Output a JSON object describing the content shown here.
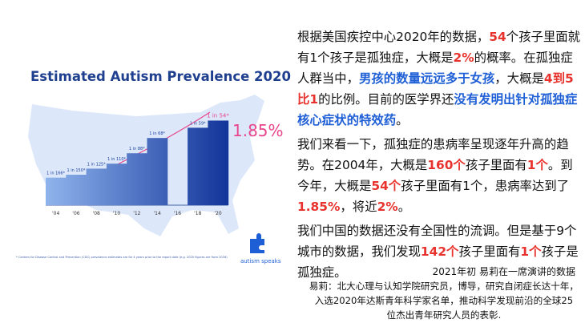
{
  "chart_data": {
    "type": "step",
    "title": "Estimated Autism Prevalence 2020",
    "categories": [
      "'04",
      "'06",
      "'08",
      "'10",
      "'12",
      "'14",
      "'16",
      "'18",
      "'20"
    ],
    "values": [
      166,
      150,
      125,
      110,
      88,
      68,
      null,
      59,
      54
    ],
    "value_labels": [
      "1 in 166*",
      "1 in 150*",
      "1 in 125*",
      "1 in 110*",
      "1 in 88*",
      "1 in 68*",
      null,
      "1 in 59*",
      "1 in 54*"
    ],
    "color": "#1a3f9e",
    "highlight_color": "#e8458b",
    "annotation": "1.85%",
    "footnote": "* Centers for Disease Control and Prevention (CDC) prevalence estimates are for 4 years prior to the report date (e.g. 2020 figures are from 2016)",
    "logo": "autism speaks"
  },
  "text": {
    "paragraphs": [
      [
        {
          "text": "根据美国疾控中心2020年的数据，"
        },
        {
          "text": "54",
          "color": "#e8322d"
        },
        {
          "text": "个孩子里面就有1个孩子是孤独症，大概是"
        },
        {
          "text": "2%",
          "color": "#e8322d"
        },
        {
          "text": "的概率。在孤独症人群当中，"
        },
        {
          "text": "男孩的数量远远多于女孩",
          "color": "#1f5fd6"
        },
        {
          "text": "，大概是"
        },
        {
          "text": "4到5比1",
          "color": "#e8322d"
        },
        {
          "text": "的比例。目前的医学界还"
        },
        {
          "text": "没有发明出针对孤独症核心症状的特效药",
          "color": "#1f5fd6"
        },
        {
          "text": "。"
        }
      ],
      [
        {
          "text": "我们来看一下，孤独症的患病率呈现逐年升高的趋势。在2004年，大概是"
        },
        {
          "text": "160个",
          "color": "#e8322d"
        },
        {
          "text": "孩子里面有"
        },
        {
          "text": "1个",
          "color": "#e8322d"
        },
        {
          "text": "。到今年，大概是"
        },
        {
          "text": "54个",
          "color": "#e8322d"
        },
        {
          "text": "孩子里面有1个，患病率达到了"
        },
        {
          "text": "1.85%",
          "color": "#e8322d"
        },
        {
          "text": "，将近"
        },
        {
          "text": "2%",
          "color": "#e8322d"
        },
        {
          "text": "。"
        }
      ],
      [
        {
          "text": "我们中国的数据还没有全国性的流调。但是基于9个城市的数据，我们发现"
        },
        {
          "text": "142个",
          "color": "#e8322d"
        },
        {
          "text": "孩子里面有"
        },
        {
          "text": "1个",
          "color": "#e8322d"
        },
        {
          "text": "孩子是孤独症。"
        }
      ]
    ],
    "source": "2021年初 易莉在一席演讲的数据",
    "bio": [
      "易莉：北大心理与认知学院研究员，博导，研究自闭症长达十年，",
      "入选2020年达斯青年科学家名单，推动科学发现前沿的全球25",
      "位杰出青年研究人员的表彰."
    ]
  }
}
